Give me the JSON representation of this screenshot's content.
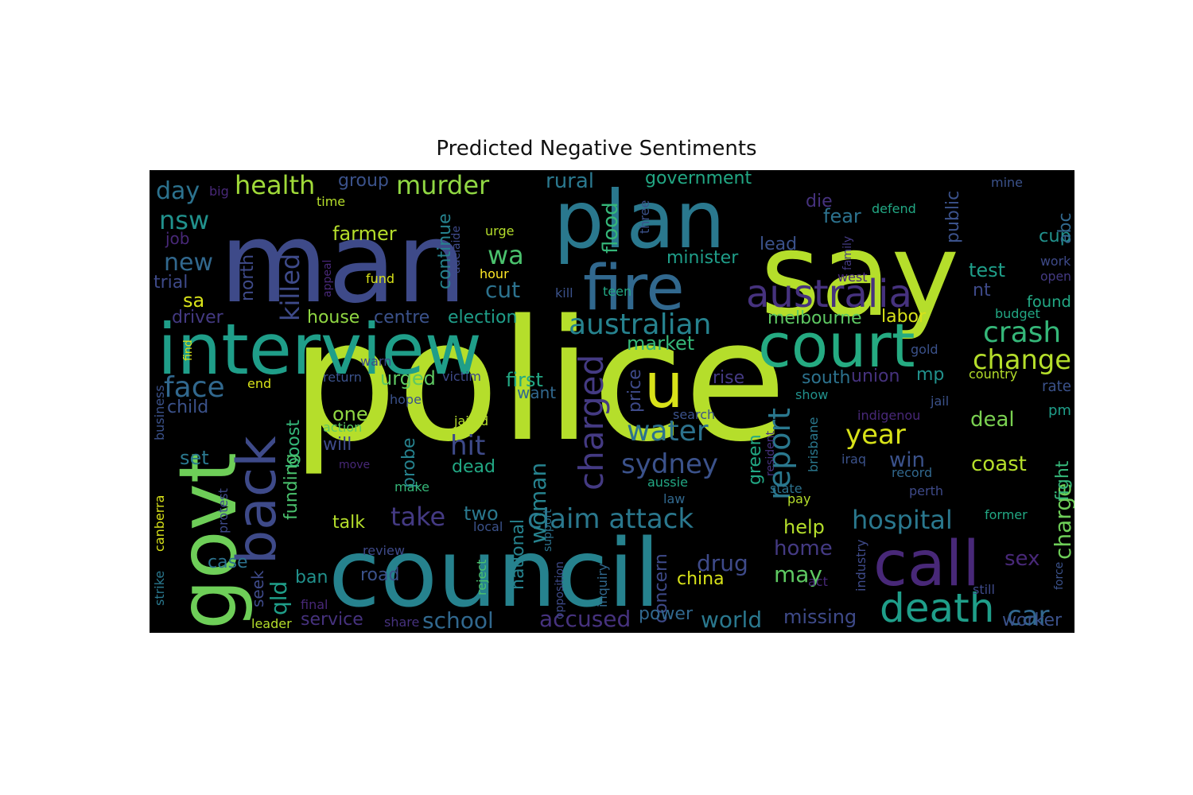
{
  "title": "Predicted Negative Sentiments",
  "colors": {
    "background": "#000000",
    "palette": "viridis"
  },
  "words": [
    {
      "text": "police",
      "color": "#b5de2b"
    },
    {
      "text": "man",
      "color": "#3e4a89"
    },
    {
      "text": "say",
      "color": "#b5de2b"
    },
    {
      "text": "council",
      "color": "#26828e"
    },
    {
      "text": "interview",
      "color": "#1f9e89"
    },
    {
      "text": "plan",
      "color": "#2a788e"
    },
    {
      "text": "govt",
      "color": "#6ece58"
    },
    {
      "text": "court",
      "color": "#25ab82"
    },
    {
      "text": "fire",
      "color": "#31688e"
    },
    {
      "text": "back",
      "color": "#3e4a89"
    },
    {
      "text": "call",
      "color": "#482878"
    },
    {
      "text": "u",
      "color": "#d8e219"
    },
    {
      "text": "australia",
      "color": "#46327e"
    },
    {
      "text": "death",
      "color": "#1f9e89"
    },
    {
      "text": "australian",
      "color": "#26828e"
    },
    {
      "text": "crash",
      "color": "#35b779"
    },
    {
      "text": "change",
      "color": "#b5de2b"
    },
    {
      "text": "hospital",
      "color": "#2a788e"
    },
    {
      "text": "claim attack",
      "color": "#2a788e"
    },
    {
      "text": "charged",
      "color": "#443a83"
    },
    {
      "text": "face",
      "color": "#31688e"
    },
    {
      "text": "report",
      "color": "#2a788e"
    },
    {
      "text": "water",
      "color": "#2c728e"
    },
    {
      "text": "sydney",
      "color": "#3b528b"
    },
    {
      "text": "year",
      "color": "#d8e219"
    },
    {
      "text": "murder",
      "color": "#90d743"
    },
    {
      "text": "health",
      "color": "#a0da39"
    },
    {
      "text": "killed",
      "color": "#3e4a89"
    },
    {
      "text": "take",
      "color": "#443a83"
    },
    {
      "text": "school",
      "color": "#31688e"
    },
    {
      "text": "world",
      "color": "#2a788e"
    },
    {
      "text": "accused",
      "color": "#46327e"
    },
    {
      "text": "car",
      "color": "#31688e"
    },
    {
      "text": "nsw",
      "color": "#21918c"
    },
    {
      "text": "new",
      "color": "#31688e"
    },
    {
      "text": "wa",
      "color": "#4ac16d"
    },
    {
      "text": "day",
      "color": "#2c728e"
    },
    {
      "text": "hit",
      "color": "#3e4a89"
    },
    {
      "text": "woman",
      "color": "#26828e"
    },
    {
      "text": "qld",
      "color": "#1f9e89"
    },
    {
      "text": "flood",
      "color": "#35b779"
    },
    {
      "text": "rural",
      "color": "#2a788e"
    },
    {
      "text": "cut",
      "color": "#2c728e"
    },
    {
      "text": "win",
      "color": "#3b528b"
    },
    {
      "text": "coast",
      "color": "#b5de2b"
    },
    {
      "text": "charge",
      "color": "#6ece58"
    },
    {
      "text": "sex",
      "color": "#482878"
    },
    {
      "text": "drug",
      "color": "#3e4a89"
    },
    {
      "text": "home",
      "color": "#443a83"
    },
    {
      "text": "may",
      "color": "#5ec962"
    },
    {
      "text": "help",
      "color": "#b5de2b"
    },
    {
      "text": "missing",
      "color": "#3e4a89"
    },
    {
      "text": "fear",
      "color": "#2c728e"
    },
    {
      "text": "minister",
      "color": "#1f9e89"
    },
    {
      "text": "government",
      "color": "#22a884"
    },
    {
      "text": "market",
      "color": "#35b779"
    },
    {
      "text": "melbourne",
      "color": "#5ec962"
    },
    {
      "text": "labor",
      "color": "#d8e219"
    },
    {
      "text": "test",
      "color": "#1f9e89"
    },
    {
      "text": "found",
      "color": "#22a884"
    },
    {
      "text": "cup",
      "color": "#21918c"
    },
    {
      "text": "deal",
      "color": "#7ad151"
    },
    {
      "text": "farmer",
      "color": "#b5de2b"
    },
    {
      "text": "house",
      "color": "#90d743"
    },
    {
      "text": "centre",
      "color": "#3b528b"
    },
    {
      "text": "election",
      "color": "#1f9e89"
    },
    {
      "text": "driver",
      "color": "#443a83"
    },
    {
      "text": "first",
      "color": "#22a884"
    },
    {
      "text": "urged",
      "color": "#5ec962"
    },
    {
      "text": "want",
      "color": "#31688e"
    },
    {
      "text": "price",
      "color": "#3e4a89"
    },
    {
      "text": "rise",
      "color": "#443a83"
    },
    {
      "text": "south",
      "color": "#2c728e"
    },
    {
      "text": "union",
      "color": "#46327e"
    },
    {
      "text": "mp",
      "color": "#21918c"
    },
    {
      "text": "rate",
      "color": "#3b528b"
    },
    {
      "text": "pm",
      "color": "#1f9e89"
    },
    {
      "text": "fight",
      "color": "#35b779"
    },
    {
      "text": "green",
      "color": "#22a884"
    },
    {
      "text": "trial",
      "color": "#3e4a89"
    },
    {
      "text": "sa",
      "color": "#d8e219"
    },
    {
      "text": "job",
      "color": "#482878"
    },
    {
      "text": "group",
      "color": "#3b528b"
    },
    {
      "text": "continue",
      "color": "#26828e"
    },
    {
      "text": "north",
      "color": "#3e4a89"
    },
    {
      "text": "die",
      "color": "#46327e"
    },
    {
      "text": "lead",
      "color": "#3b528b"
    },
    {
      "text": "public",
      "color": "#3b528b"
    },
    {
      "text": "abc",
      "color": "#31688e"
    },
    {
      "text": "open",
      "color": "#443a83"
    },
    {
      "text": "nt",
      "color": "#3e4a89"
    },
    {
      "text": "child",
      "color": "#3b528b"
    },
    {
      "text": "set",
      "color": "#2a788e"
    },
    {
      "text": "boost",
      "color": "#35b779"
    },
    {
      "text": "funding",
      "color": "#4ac16d"
    },
    {
      "text": "one",
      "color": "#90d743"
    },
    {
      "text": "will",
      "color": "#3e4a89"
    },
    {
      "text": "probe",
      "color": "#26828e"
    },
    {
      "text": "dead",
      "color": "#22a884"
    },
    {
      "text": "two",
      "color": "#2a788e"
    },
    {
      "text": "talk",
      "color": "#b5de2b"
    },
    {
      "text": "national",
      "color": "#26828e"
    },
    {
      "text": "road",
      "color": "#3b528b"
    },
    {
      "text": "china",
      "color": "#d8e219"
    },
    {
      "text": "concern",
      "color": "#3e4a89"
    },
    {
      "text": "power",
      "color": "#31688e"
    },
    {
      "text": "case",
      "color": "#2c728e"
    },
    {
      "text": "ban",
      "color": "#21918c"
    },
    {
      "text": "seek",
      "color": "#3e4a89"
    },
    {
      "text": "service",
      "color": "#46327e"
    },
    {
      "text": "worker",
      "color": "#3b528b"
    },
    {
      "text": "fund",
      "color": "#d8e219"
    },
    {
      "text": "hour",
      "color": "#fde725"
    },
    {
      "text": "urge",
      "color": "#b5de2b"
    },
    {
      "text": "kill",
      "color": "#3b528b"
    },
    {
      "text": "teen",
      "color": "#22a884"
    },
    {
      "text": "adelaide",
      "color": "#3e4a89"
    },
    {
      "text": "appeal",
      "color": "#482878"
    },
    {
      "text": "three",
      "color": "#3b528b"
    },
    {
      "text": "defend",
      "color": "#22a884"
    },
    {
      "text": "family",
      "color": "#443a83"
    },
    {
      "text": "west",
      "color": "#482878"
    },
    {
      "text": "mine",
      "color": "#3b528b"
    },
    {
      "text": "work",
      "color": "#3e4a89"
    },
    {
      "text": "big",
      "color": "#482878"
    },
    {
      "text": "time",
      "color": "#b5de2b"
    },
    {
      "text": "end",
      "color": "#d8e219"
    },
    {
      "text": "hope",
      "color": "#3b528b"
    },
    {
      "text": "return",
      "color": "#3b528b"
    },
    {
      "text": "victim",
      "color": "#3e4a89"
    },
    {
      "text": "warn",
      "color": "#3e4a89"
    },
    {
      "text": "find",
      "color": "#d8e219"
    },
    {
      "text": "jailed",
      "color": "#b5de2b"
    },
    {
      "text": "action",
      "color": "#5ec962"
    },
    {
      "text": "move",
      "color": "#482878"
    },
    {
      "text": "make",
      "color": "#35b779"
    },
    {
      "text": "review",
      "color": "#3e4a89"
    },
    {
      "text": "share",
      "color": "#46327e"
    },
    {
      "text": "support",
      "color": "#2c728e"
    },
    {
      "text": "opposition",
      "color": "#3e4a89"
    },
    {
      "text": "local",
      "color": "#3b528b"
    },
    {
      "text": "reject",
      "color": "#4ac16d"
    },
    {
      "text": "inquiry",
      "color": "#31688e"
    },
    {
      "text": "final",
      "color": "#482878"
    },
    {
      "text": "leader",
      "color": "#b5de2b"
    },
    {
      "text": "business",
      "color": "#3b528b"
    },
    {
      "text": "canberra",
      "color": "#d8e219"
    },
    {
      "text": "strike",
      "color": "#2a788e"
    },
    {
      "text": "protest",
      "color": "#3e4a89"
    },
    {
      "text": "search",
      "color": "#3b528b"
    },
    {
      "text": "aussie",
      "color": "#22a884"
    },
    {
      "text": "law",
      "color": "#31688e"
    },
    {
      "text": "resident",
      "color": "#46327e"
    },
    {
      "text": "brisbane",
      "color": "#2a788e"
    },
    {
      "text": "iraq",
      "color": "#3b528b"
    },
    {
      "text": "record",
      "color": "#31688e"
    },
    {
      "text": "state",
      "color": "#2c728e"
    },
    {
      "text": "pay",
      "color": "#b5de2b"
    },
    {
      "text": "perth",
      "color": "#3e4a89"
    },
    {
      "text": "indigenou",
      "color": "#482878"
    },
    {
      "text": "show",
      "color": "#21918c"
    },
    {
      "text": "jail",
      "color": "#3b528b"
    },
    {
      "text": "gold",
      "color": "#3b528b"
    },
    {
      "text": "country",
      "color": "#b5de2b"
    },
    {
      "text": "budget",
      "color": "#22a884"
    },
    {
      "text": "former",
      "color": "#22a884"
    },
    {
      "text": "force",
      "color": "#3b528b"
    },
    {
      "text": "still",
      "color": "#3e4a89"
    },
    {
      "text": "act",
      "color": "#482878"
    },
    {
      "text": "industry",
      "color": "#3e4a89"
    }
  ]
}
